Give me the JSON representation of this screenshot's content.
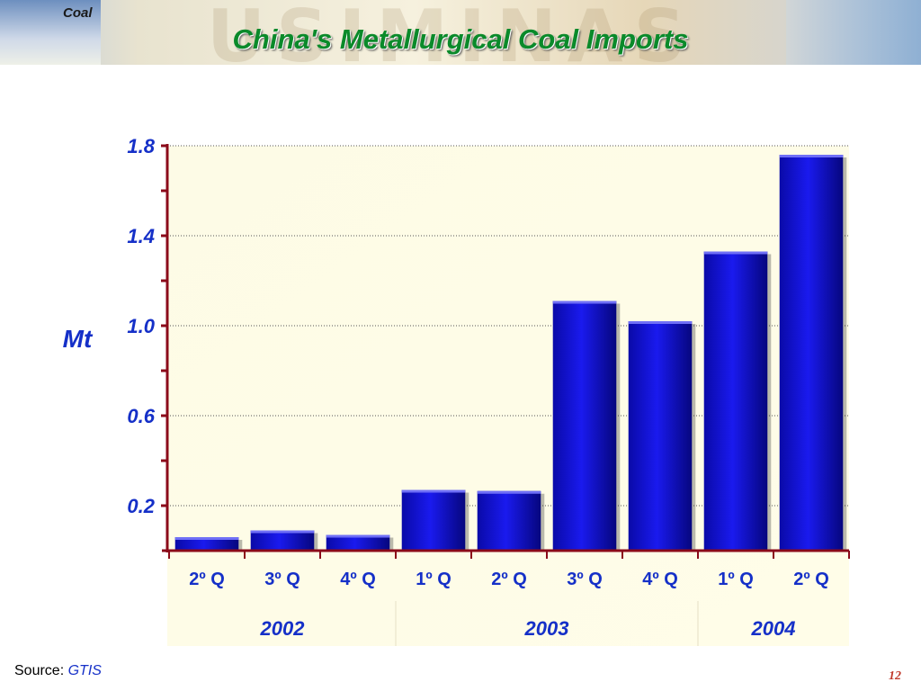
{
  "header": {
    "section_tag": "Coal",
    "title": "China's Metallurgical Coal Imports",
    "watermark": "USIMINAS"
  },
  "chart_data": {
    "type": "bar",
    "title": "China's Metallurgical Coal Imports",
    "ylabel": "Mt",
    "xlabel": "",
    "categories": [
      "2º Q",
      "3º Q",
      "4º Q",
      "1º Q",
      "2º Q",
      "3º Q",
      "4º Q",
      "1º Q",
      "2º Q"
    ],
    "groups": [
      {
        "label": "2002",
        "count": 3
      },
      {
        "label": "2003",
        "count": 4
      },
      {
        "label": "2004",
        "count": 2
      }
    ],
    "values": [
      0.06,
      0.09,
      0.07,
      0.27,
      0.265,
      1.11,
      1.02,
      1.33,
      1.76
    ],
    "ylim": [
      0.0,
      1.8
    ],
    "yticks": [
      0.2,
      0.6,
      1.0,
      1.4,
      1.8
    ],
    "yticks_labels": [
      "0.2",
      "0.6",
      "1.0",
      "1.4",
      "1.8"
    ],
    "grid": true,
    "bar_color": "#1a1aee",
    "plot_background": "#fffde8"
  },
  "footer": {
    "source_label": "Source:",
    "source_name": "GTIS",
    "page_number": "12"
  }
}
